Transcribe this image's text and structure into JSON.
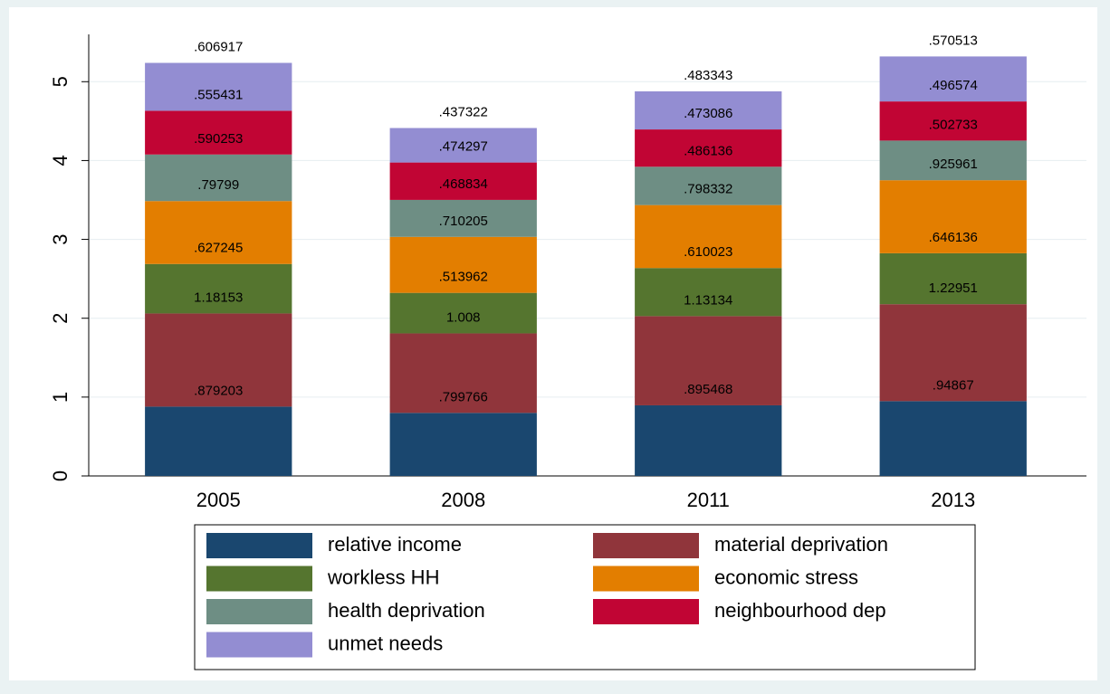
{
  "chart_data": {
    "type": "stacked_bar",
    "categories": [
      "2005",
      "2008",
      "2011",
      "2013"
    ],
    "series": [
      {
        "name": "relative income",
        "color": "#1a476f",
        "values": [
          0.879203,
          0.799766,
          0.895468,
          0.94867
        ],
        "value_labels": [
          ".879203",
          ".799766",
          ".895468",
          ".94867"
        ]
      },
      {
        "name": "material deprivation",
        "color": "#90353b",
        "values": [
          1.18153,
          1.008,
          1.13134,
          1.22951
        ],
        "value_labels": [
          "1.18153",
          "1.008",
          "1.13134",
          "1.22951"
        ]
      },
      {
        "name": "workless HH",
        "color": "#55752f",
        "values": [
          0.627245,
          0.513962,
          0.610023,
          0.646136
        ],
        "value_labels": [
          ".627245",
          ".513962",
          ".610023",
          ".646136"
        ]
      },
      {
        "name": "economic stress",
        "color": "#e37e00",
        "values": [
          0.79799,
          0.710205,
          0.798332,
          0.925961
        ],
        "value_labels": [
          ".79799",
          ".710205",
          ".798332",
          ".925961"
        ]
      },
      {
        "name": "health deprivation",
        "color": "#6e8e84",
        "values": [
          0.590253,
          0.468834,
          0.486136,
          0.502733
        ],
        "value_labels": [
          ".590253",
          ".468834",
          ".486136",
          ".502733"
        ]
      },
      {
        "name": "neighbourhood dep",
        "color": "#c10534",
        "values": [
          0.555431,
          0.474297,
          0.473086,
          0.496574
        ],
        "value_labels": [
          ".555431",
          ".474297",
          ".473086",
          ".496574"
        ]
      },
      {
        "name": "unmet needs",
        "color": "#938dd2",
        "values": [
          0.606917,
          0.437322,
          0.483343,
          0.570513
        ],
        "value_labels": [
          ".606917",
          ".437322",
          ".483343",
          ".570513"
        ]
      }
    ],
    "ylim": [
      0,
      5.6
    ],
    "yticks": [
      0,
      1,
      2,
      3,
      4,
      5
    ],
    "grid": true
  }
}
